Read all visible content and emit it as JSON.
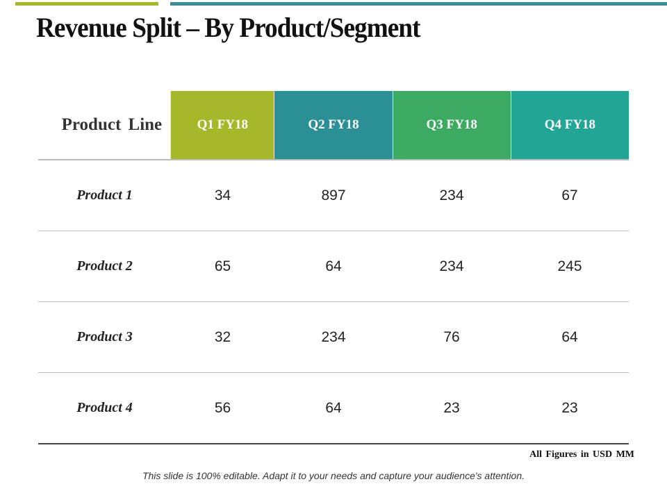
{
  "colors": {
    "top_bar_green": "#a4b82a",
    "top_bar_teal": "#3a8f96",
    "q1": "#a4b82a",
    "q2": "#2a9096",
    "q3": "#3daa62",
    "q4": "#22a595"
  },
  "title": "Revenue Split – By Product/Segment",
  "table": {
    "header_label": "Product Line",
    "columns": [
      "Q1 FY18",
      "Q2 FY18",
      "Q3 FY18",
      "Q4 FY18"
    ],
    "rows": [
      {
        "label": "Product 1",
        "values": [
          "34",
          "897",
          "234",
          "67"
        ]
      },
      {
        "label": "Product 2",
        "values": [
          "65",
          "64",
          "234",
          "245"
        ]
      },
      {
        "label": "Product 3",
        "values": [
          "32",
          "234",
          "76",
          "64"
        ]
      },
      {
        "label": "Product 4",
        "values": [
          "56",
          "64",
          "23",
          "23"
        ]
      }
    ]
  },
  "note": "All Figures in USD MM",
  "footer": "This slide is 100% editable. Adapt it to your needs and capture your audience's attention."
}
